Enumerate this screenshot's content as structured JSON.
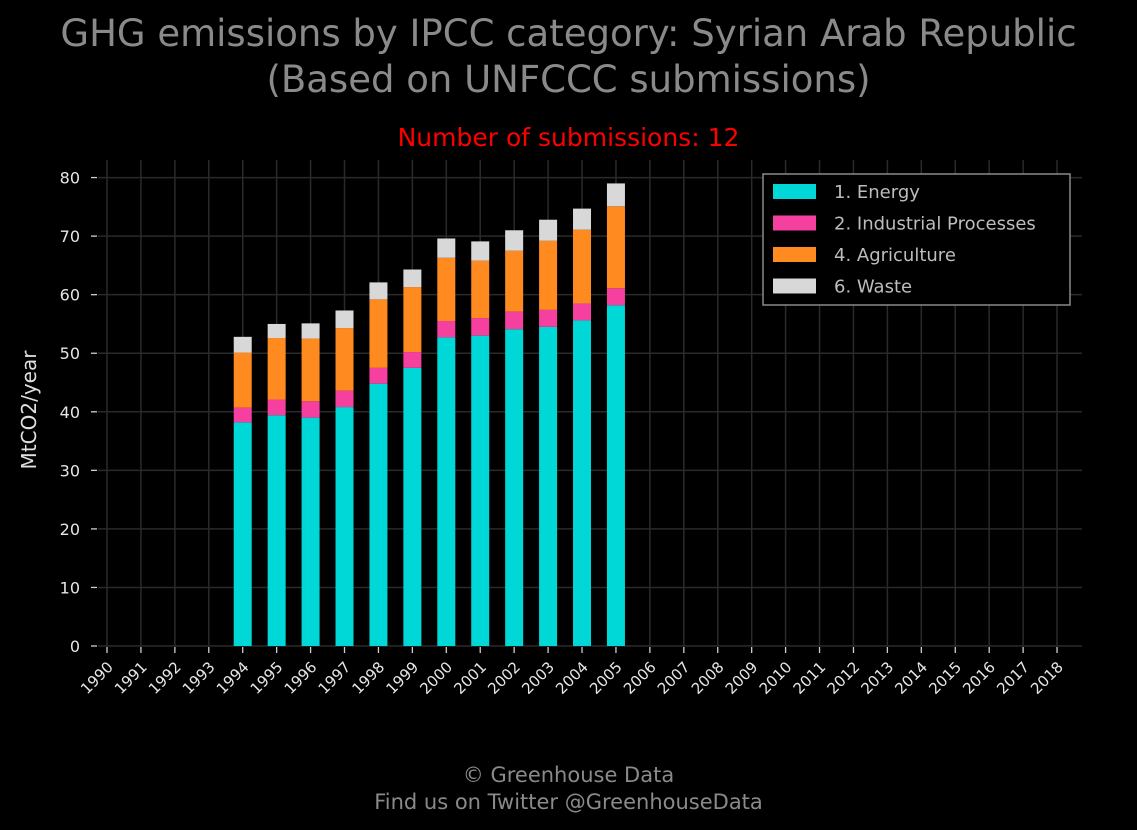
{
  "title_line1": "GHG emissions by IPCC category: Syrian Arab Republic",
  "title_line2": "(Based on UNFCCC submissions)",
  "footer_line1": "© Greenhouse Data",
  "footer_line2": "Find us on Twitter @GreenhouseData",
  "chart_data": {
    "type": "bar",
    "stacked": true,
    "subtitle": "Number of submissions: 12",
    "ylabel": "MtCO2/year",
    "xlabel": "",
    "ylim": [
      0,
      83
    ],
    "yticks": [
      0,
      10,
      20,
      30,
      40,
      50,
      60,
      70,
      80
    ],
    "grid": true,
    "legend_position": "top-right",
    "categories": [
      "1990",
      "1991",
      "1992",
      "1993",
      "1994",
      "1995",
      "1996",
      "1997",
      "1998",
      "1999",
      "2000",
      "2001",
      "2002",
      "2003",
      "2004",
      "2005",
      "2006",
      "2007",
      "2008",
      "2009",
      "2010",
      "2011",
      "2012",
      "2013",
      "2014",
      "2015",
      "2016",
      "2017",
      "2018"
    ],
    "series": [
      {
        "name": "1. Energy",
        "color": "#00d7d7",
        "values": [
          null,
          null,
          null,
          null,
          38.2,
          39.4,
          39.0,
          40.8,
          44.8,
          47.5,
          52.7,
          53.0,
          54.1,
          54.5,
          55.6,
          58.2,
          null,
          null,
          null,
          null,
          null,
          null,
          null,
          null,
          null,
          null,
          null,
          null,
          null
        ]
      },
      {
        "name": "2. Industrial Processes",
        "color": "#f540a0",
        "values": [
          null,
          null,
          null,
          null,
          2.5,
          2.7,
          2.8,
          2.8,
          2.7,
          2.7,
          2.8,
          3.0,
          3.0,
          2.9,
          2.9,
          2.9,
          null,
          null,
          null,
          null,
          null,
          null,
          null,
          null,
          null,
          null,
          null,
          null,
          null
        ]
      },
      {
        "name": "4. Agriculture",
        "color": "#ff8a1f",
        "values": [
          null,
          null,
          null,
          null,
          9.4,
          10.5,
          10.7,
          10.7,
          11.7,
          11.1,
          10.8,
          9.8,
          10.4,
          11.8,
          12.6,
          14.0,
          null,
          null,
          null,
          null,
          null,
          null,
          null,
          null,
          null,
          null,
          null,
          null,
          null
        ]
      },
      {
        "name": "6. Waste",
        "color": "#d8d8d8",
        "values": [
          null,
          null,
          null,
          null,
          2.7,
          2.4,
          2.6,
          3.0,
          2.9,
          3.0,
          3.3,
          3.3,
          3.5,
          3.6,
          3.6,
          3.9,
          null,
          null,
          null,
          null,
          null,
          null,
          null,
          null,
          null,
          null,
          null,
          null,
          null
        ]
      }
    ]
  }
}
